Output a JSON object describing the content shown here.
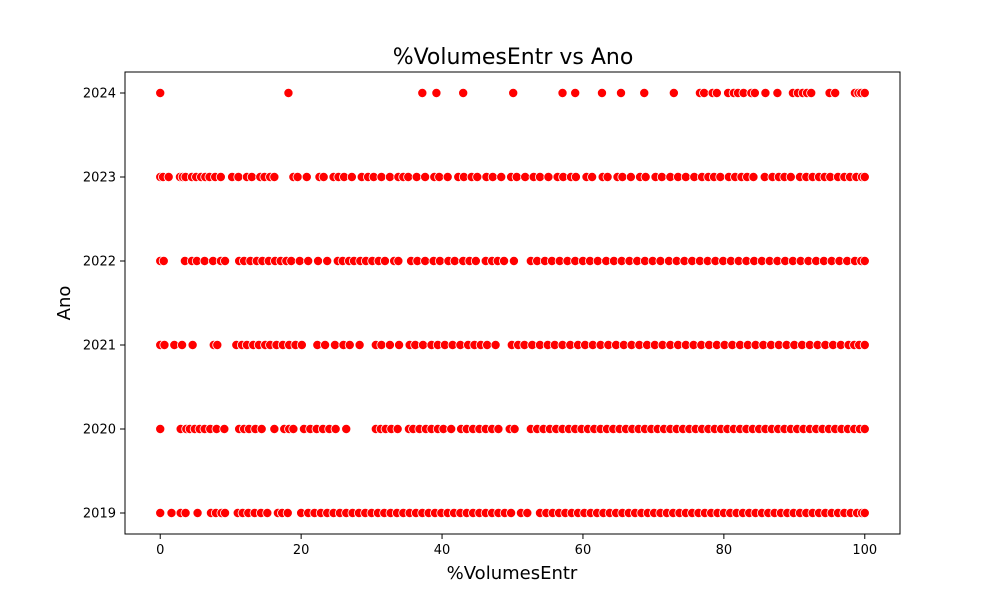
{
  "chart_data": {
    "type": "scatter",
    "title": "%VolumesEntr vs Ano",
    "xlabel": "%VolumesEntr",
    "ylabel": "Ano",
    "xlim": [
      -5,
      105
    ],
    "ylim": [
      2018.75,
      2024.25
    ],
    "xticks": [
      0,
      20,
      40,
      60,
      80,
      100
    ],
    "yticks": [
      2019,
      2020,
      2021,
      2022,
      2023,
      2024
    ],
    "grid": false,
    "marker_color": "#ff0000",
    "marker_edge_color": "#ffffff",
    "series": [
      {
        "y": 2024,
        "x": [
          0,
          18.2,
          37.2,
          39.2,
          43.0,
          50.1,
          57.1,
          58.9,
          62.7,
          65.4,
          68.7,
          72.9,
          76.6,
          77.2,
          78.4,
          79.0,
          80.6,
          81.4,
          82.0,
          82.8,
          83.9,
          84.4,
          85.9,
          87.6,
          89.8,
          90.5,
          91.2,
          91.8,
          92.4,
          95.0,
          95.8,
          98.6,
          99.1,
          99.5,
          100
        ]
      },
      {
        "y": 2023,
        "x": [
          0,
          0.4,
          1.2,
          2.8,
          3.2,
          3.6,
          4.5,
          5.1,
          5.8,
          6.4,
          7.0,
          7.8,
          8.6,
          10.2,
          11.1,
          12.3,
          13.0,
          14.2,
          14.8,
          15.6,
          16.2,
          18.9,
          19.5,
          20.8,
          22.6,
          23.2,
          24.6,
          25.3,
          26.1,
          27.2,
          28.6,
          29.5,
          30.3,
          31.4,
          32.6,
          33.8,
          34.5,
          35.2,
          36.4,
          37.6,
          38.9,
          39.6,
          40.8,
          42.3,
          43.1,
          44.2,
          45.0,
          46.3,
          47.2,
          48.4,
          49.8,
          50.6,
          51.8,
          53.0,
          53.9,
          55.1,
          56.4,
          57.2,
          58.3,
          59.0,
          60.5,
          61.3,
          62.8,
          63.5,
          64.9,
          65.6,
          66.8,
          68.1,
          68.9,
          70.3,
          71.2,
          72.4,
          73.5,
          74.6,
          75.8,
          76.9,
          77.8,
          78.6,
          79.5,
          80.7,
          81.6,
          82.5,
          83.3,
          84.2,
          85.8,
          86.9,
          87.8,
          88.6,
          89.5,
          90.8,
          91.7,
          92.6,
          93.5,
          94.3,
          95.1,
          96.2,
          97.1,
          97.9,
          98.8,
          99.6,
          100
        ]
      },
      {
        "y": 2022,
        "x": [
          0,
          0.5,
          3.5,
          4.5,
          5.2,
          6.3,
          7.5,
          8.6,
          9.2,
          11.2,
          11.9,
          12.8,
          13.7,
          14.5,
          15.4,
          16.3,
          17.1,
          17.9,
          18.6,
          19.8,
          21.0,
          22.4,
          23.7,
          25.2,
          25.9,
          26.8,
          27.5,
          28.4,
          29.2,
          30.1,
          31.0,
          31.9,
          33.2,
          33.8,
          35.6,
          36.5,
          37.6,
          38.8,
          39.7,
          40.9,
          41.8,
          43.0,
          43.9,
          44.8,
          46.2,
          47.1,
          47.9,
          48.8,
          50.2,
          52.6,
          53.5,
          54.6,
          55.6,
          56.7,
          57.8,
          58.9,
          60.0,
          61.0,
          62.1,
          63.3,
          64.4,
          65.5,
          66.6,
          67.7,
          68.8,
          69.9,
          71.0,
          72.2,
          73.3,
          74.4,
          75.5,
          76.6,
          77.7,
          78.8,
          79.9,
          81.0,
          82.1,
          83.2,
          84.3,
          85.4,
          86.5,
          87.6,
          88.7,
          89.8,
          90.9,
          92.0,
          93.1,
          94.2,
          95.3,
          96.4,
          97.5,
          98.6,
          99.5,
          100
        ]
      },
      {
        "y": 2021,
        "x": [
          0,
          0.6,
          2.0,
          3.1,
          4.6,
          7.6,
          8.1,
          10.8,
          11.6,
          12.3,
          13.2,
          14.0,
          14.9,
          15.6,
          16.5,
          17.4,
          18.3,
          19.2,
          20.1,
          22.3,
          23.4,
          24.8,
          26.0,
          26.9,
          28.3,
          30.6,
          31.4,
          32.6,
          33.9,
          35.4,
          36.2,
          37.3,
          38.5,
          39.4,
          40.4,
          41.5,
          42.6,
          43.7,
          44.6,
          45.5,
          46.4,
          47.6,
          49.9,
          50.8,
          51.7,
          52.8,
          53.9,
          55.0,
          56.0,
          57.1,
          58.2,
          59.3,
          60.3,
          61.4,
          62.5,
          63.6,
          64.7,
          65.8,
          66.9,
          68.0,
          69.1,
          70.2,
          71.3,
          72.4,
          73.5,
          74.6,
          75.7,
          76.8,
          77.9,
          79.0,
          80.1,
          81.2,
          82.3,
          83.4,
          84.5,
          85.6,
          86.7,
          87.8,
          88.9,
          90.0,
          91.1,
          92.2,
          93.3,
          94.4,
          95.5,
          96.6,
          97.7,
          98.5,
          99.2,
          100
        ]
      },
      {
        "y": 2020,
        "x": [
          0,
          2.9,
          3.7,
          4.2,
          4.9,
          5.6,
          6.3,
          7.1,
          8.0,
          9.1,
          11.2,
          11.9,
          12.6,
          13.5,
          14.4,
          16.2,
          17.6,
          18.3,
          18.9,
          20.4,
          21.3,
          22.2,
          23.1,
          24.0,
          24.9,
          26.4,
          30.6,
          31.3,
          32.0,
          32.8,
          33.7,
          35.3,
          35.9,
          36.8,
          37.7,
          38.5,
          39.4,
          40.2,
          41.3,
          42.7,
          43.5,
          44.4,
          45.3,
          46.2,
          47.1,
          48.0,
          49.6,
          50.3,
          52.6,
          53.5,
          54.4,
          55.3,
          56.2,
          57.1,
          58.0,
          58.9,
          59.8,
          60.7,
          61.6,
          62.5,
          63.4,
          64.3,
          65.2,
          66.1,
          67.0,
          67.9,
          68.8,
          69.7,
          70.6,
          71.5,
          72.4,
          73.3,
          74.2,
          75.1,
          76.0,
          76.9,
          77.8,
          78.7,
          79.6,
          80.5,
          81.4,
          82.3,
          83.2,
          84.1,
          85.0,
          85.9,
          86.8,
          87.7,
          88.6,
          89.5,
          90.4,
          91.3,
          92.2,
          93.1,
          94.0,
          94.9,
          95.8,
          96.7,
          97.6,
          98.5,
          99.3,
          100
        ]
      },
      {
        "y": 2019,
        "x": [
          0,
          1.6,
          2.9,
          3.6,
          5.3,
          7.2,
          7.9,
          8.7,
          9.2,
          11.0,
          11.7,
          12.5,
          13.4,
          14.3,
          15.2,
          16.7,
          17.3,
          18.1,
          20.0,
          21.0,
          21.9,
          22.8,
          23.7,
          24.6,
          25.5,
          26.4,
          27.3,
          28.2,
          29.1,
          30.0,
          30.9,
          31.8,
          32.7,
          33.6,
          34.5,
          35.4,
          36.3,
          37.2,
          38.1,
          39.0,
          39.9,
          40.8,
          41.7,
          42.6,
          43.5,
          44.4,
          45.3,
          46.2,
          47.1,
          48.0,
          48.9,
          49.8,
          51.2,
          52.1,
          53.9,
          54.8,
          55.7,
          56.6,
          57.5,
          58.4,
          59.3,
          60.2,
          61.1,
          62.0,
          62.9,
          63.8,
          64.7,
          65.6,
          66.5,
          67.4,
          68.3,
          69.2,
          70.1,
          71.0,
          71.9,
          72.8,
          73.7,
          74.6,
          75.5,
          76.4,
          77.3,
          78.2,
          79.1,
          80.0,
          80.9,
          81.8,
          82.7,
          83.6,
          84.5,
          85.4,
          86.3,
          87.2,
          88.1,
          89.0,
          89.9,
          90.8,
          91.7,
          92.6,
          93.5,
          94.4,
          95.3,
          96.2,
          97.1,
          98.0,
          98.9,
          99.6,
          100
        ]
      }
    ]
  }
}
